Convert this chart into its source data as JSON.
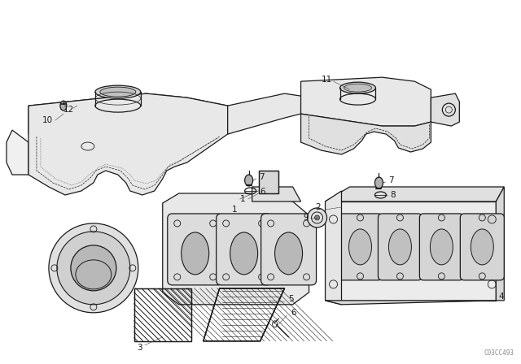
{
  "background_color": "#f5f5f0",
  "line_color": "#1a1a1a",
  "fig_width": 6.4,
  "fig_height": 4.48,
  "dpi": 100,
  "watermark": "C03CC493",
  "watermark_color": "#888888"
}
